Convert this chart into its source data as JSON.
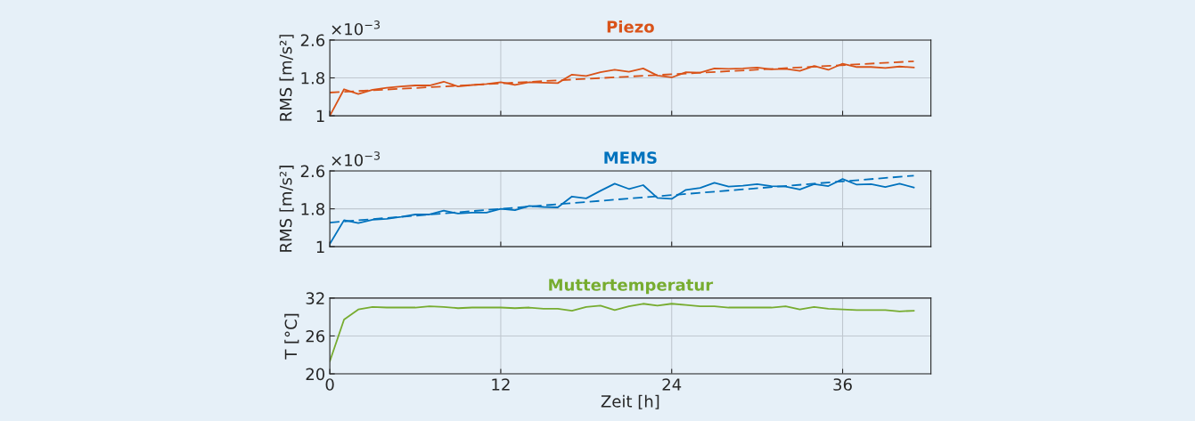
{
  "chart_data": [
    {
      "type": "line",
      "title": "Piezo",
      "ylabel": "RMS [m/s²]",
      "annotations": [
        "×10$^{−3}$"
      ],
      "xlim": [
        0,
        42.2
      ],
      "xticks": [
        0,
        12,
        24,
        36
      ],
      "ylim": [
        1,
        2.6
      ],
      "yticks": [
        1,
        1.8,
        2.6
      ],
      "grid": true,
      "tick_labels": "y",
      "series": [
        {
          "color": "#d95319",
          "line_style": "solid",
          "x": [
            0,
            1,
            2,
            3,
            4,
            5,
            6,
            7,
            8,
            9,
            10,
            11,
            12,
            13,
            14,
            15,
            16,
            17,
            18,
            19,
            20,
            21,
            22,
            23,
            24,
            25,
            26,
            27,
            28,
            29,
            30,
            31,
            32,
            33,
            34,
            35,
            36,
            37,
            38,
            39,
            40,
            41
          ],
          "values": [
            1.0,
            1.56,
            1.46,
            1.55,
            1.59,
            1.62,
            1.64,
            1.64,
            1.72,
            1.62,
            1.65,
            1.67,
            1.71,
            1.65,
            1.71,
            1.7,
            1.69,
            1.87,
            1.84,
            1.92,
            1.97,
            1.93,
            2.0,
            1.85,
            1.81,
            1.92,
            1.91,
            2.0,
            1.99,
            2.0,
            2.02,
            1.98,
            1.99,
            1.95,
            2.05,
            1.97,
            2.1,
            2.03,
            2.03,
            2.01,
            2.04,
            2.02
          ]
        },
        {
          "color": "#d95319",
          "line_style": "dashed",
          "x": [
            0,
            41
          ],
          "values": [
            1.49,
            2.15
          ]
        }
      ]
    },
    {
      "type": "line",
      "title": "MEMS",
      "ylabel": "RMS [m/s²]",
      "annotations": [
        "×10$^{−3}$"
      ],
      "xlim": [
        0,
        42.2
      ],
      "xticks": [
        0,
        12,
        24,
        36
      ],
      "ylim": [
        1,
        2.6
      ],
      "yticks": [
        1,
        1.8,
        2.6
      ],
      "grid": true,
      "tick_labels": "y",
      "series": [
        {
          "color": "#0072bd",
          "line_style": "solid",
          "x": [
            0,
            1,
            2,
            3,
            4,
            5,
            6,
            7,
            8,
            9,
            10,
            11,
            12,
            13,
            14,
            15,
            16,
            17,
            18,
            19,
            20,
            21,
            22,
            23,
            24,
            25,
            26,
            27,
            28,
            29,
            30,
            31,
            32,
            33,
            34,
            35,
            36,
            37,
            38,
            39,
            40,
            41
          ],
          "values": [
            1.06,
            1.56,
            1.5,
            1.57,
            1.59,
            1.63,
            1.68,
            1.68,
            1.76,
            1.7,
            1.72,
            1.72,
            1.8,
            1.77,
            1.86,
            1.84,
            1.83,
            2.06,
            2.02,
            2.18,
            2.33,
            2.22,
            2.3,
            2.03,
            2.01,
            2.2,
            2.24,
            2.35,
            2.27,
            2.29,
            2.32,
            2.28,
            2.27,
            2.21,
            2.32,
            2.28,
            2.43,
            2.31,
            2.32,
            2.26,
            2.33,
            2.25
          ]
        },
        {
          "color": "#0072bd",
          "line_style": "dashed",
          "x": [
            0,
            41
          ],
          "values": [
            1.51,
            2.5
          ]
        }
      ]
    },
    {
      "type": "line",
      "title": "Muttertemperatur",
      "ylabel": "T [°C]",
      "xlabel": "Zeit [h]",
      "xlim": [
        0,
        42.2
      ],
      "xticks": [
        0,
        12,
        24,
        36
      ],
      "ylim": [
        20,
        32
      ],
      "yticks": [
        20,
        26,
        32
      ],
      "grid": true,
      "series": [
        {
          "color": "#77ac30",
          "line_style": "solid",
          "x": [
            0,
            1,
            2,
            3,
            4,
            5,
            6,
            7,
            8,
            9,
            10,
            11,
            12,
            13,
            14,
            15,
            16,
            17,
            18,
            19,
            20,
            21,
            22,
            23,
            24,
            25,
            26,
            27,
            28,
            29,
            30,
            31,
            32,
            33,
            34,
            35,
            36,
            37,
            38,
            39,
            40,
            41
          ],
          "values": [
            22.0,
            28.6,
            30.2,
            30.6,
            30.5,
            30.5,
            30.5,
            30.7,
            30.6,
            30.4,
            30.5,
            30.5,
            30.5,
            30.4,
            30.5,
            30.3,
            30.3,
            30.0,
            30.6,
            30.8,
            30.1,
            30.7,
            31.1,
            30.8,
            31.1,
            30.9,
            30.7,
            30.7,
            30.5,
            30.5,
            30.5,
            30.5,
            30.7,
            30.2,
            30.6,
            30.3,
            30.2,
            30.1,
            30.1,
            30.1,
            29.9,
            30.0
          ]
        }
      ]
    }
  ]
}
